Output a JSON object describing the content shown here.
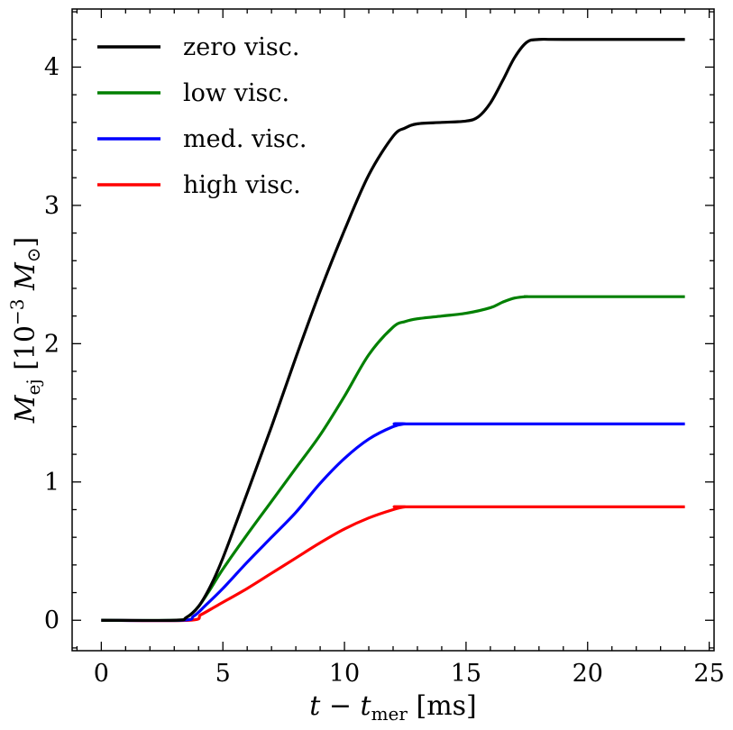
{
  "chart_data": {
    "type": "line",
    "title": "",
    "xlabel": {
      "main": "t − t",
      "sub": "mer",
      "unit": " [ms]"
    },
    "ylabel": {
      "main": "M",
      "sub": "ej",
      "pre": " [10",
      "exp": "−3",
      "mid": " M",
      "sub2": "⊙",
      "post": "]"
    },
    "xlim": [
      -1.2,
      25.2
    ],
    "ylim": [
      -0.22,
      4.42
    ],
    "xticks": [
      0,
      5,
      10,
      15,
      20,
      25
    ],
    "yticks": [
      0,
      1,
      2,
      3,
      4
    ],
    "xtick_labels": [
      "0",
      "5",
      "10",
      "15",
      "20",
      "25"
    ],
    "ytick_labels": [
      "0",
      "1",
      "2",
      "3",
      "4"
    ],
    "legend_position": "top-left",
    "series": [
      {
        "name": "zero visc.",
        "color": "#000000",
        "x": [
          0,
          3.0,
          3.5,
          4.0,
          4.5,
          5.0,
          6.0,
          7.0,
          8.0,
          9.0,
          10.0,
          11.0,
          12.0,
          12.5,
          13.0,
          14.0,
          15.0,
          15.5,
          16.0,
          16.5,
          17.0,
          17.5,
          18.0,
          19.0,
          24.0
        ],
        "y": [
          0,
          0.0,
          0.02,
          0.1,
          0.25,
          0.45,
          0.92,
          1.4,
          1.9,
          2.38,
          2.82,
          3.22,
          3.5,
          3.56,
          3.59,
          3.6,
          3.61,
          3.64,
          3.74,
          3.9,
          4.07,
          4.18,
          4.2,
          4.2,
          4.2
        ]
      },
      {
        "name": "low visc.",
        "color": "#008000",
        "x": [
          0,
          3.0,
          3.5,
          4.0,
          4.5,
          5.0,
          6.0,
          7.0,
          8.0,
          9.0,
          10.0,
          11.0,
          12.0,
          12.5,
          13.0,
          14.0,
          15.0,
          16.0,
          16.5,
          17.0,
          17.5,
          18.0,
          24.0
        ],
        "y": [
          0,
          0.0,
          0.02,
          0.1,
          0.23,
          0.37,
          0.62,
          0.86,
          1.1,
          1.34,
          1.62,
          1.92,
          2.12,
          2.16,
          2.18,
          2.2,
          2.22,
          2.26,
          2.3,
          2.33,
          2.34,
          2.34,
          2.34
        ]
      },
      {
        "name": "med. visc.",
        "color": "#0000ff",
        "x": [
          0,
          3.3,
          3.8,
          4.3,
          5.0,
          6.0,
          7.0,
          8.0,
          9.0,
          10.0,
          11.0,
          12.0,
          12.5,
          13.0,
          24.0
        ],
        "y": [
          0,
          0.0,
          0.03,
          0.11,
          0.23,
          0.42,
          0.6,
          0.78,
          0.99,
          1.17,
          1.31,
          1.4,
          1.42,
          1.42,
          1.42
        ]
      },
      {
        "name": "high visc.",
        "color": "#ff0000",
        "x": [
          0,
          3.6,
          4.1,
          4.8,
          6.0,
          7.0,
          8.0,
          9.0,
          10.0,
          11.0,
          12.0,
          12.5,
          13.0,
          24.0
        ],
        "y": [
          0,
          0.0,
          0.04,
          0.11,
          0.23,
          0.34,
          0.45,
          0.56,
          0.66,
          0.74,
          0.8,
          0.82,
          0.82,
          0.82
        ]
      }
    ]
  }
}
